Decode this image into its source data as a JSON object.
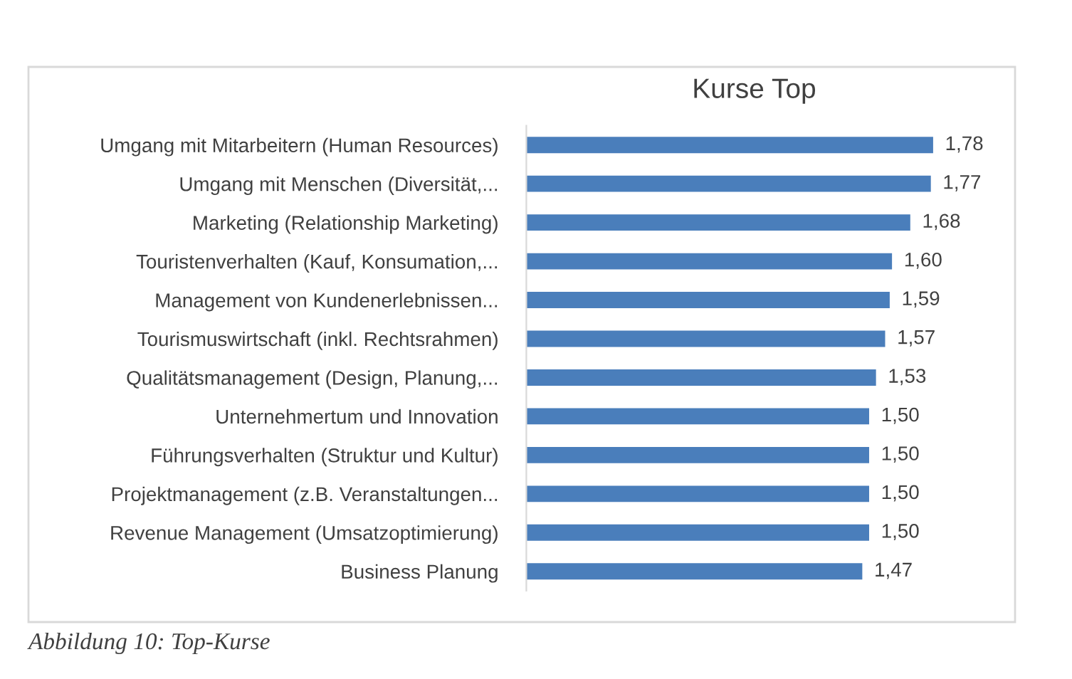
{
  "chart_data": {
    "type": "bar",
    "orientation": "horizontal",
    "title": "Kurse Top",
    "categories": [
      "Umgang mit Mitarbeitern (Human Resources)",
      "Umgang mit Menschen (Diversität,...",
      "Marketing (Relationship Marketing)",
      "Touristenverhalten (Kauf, Konsumation,...",
      "Management von Kundenerlebnissen...",
      "Tourismuswirtschaft (inkl. Rechtsrahmen)",
      "Qualitätsmanagement (Design, Planung,...",
      "Unternehmertum und Innovation",
      "Führungsverhalten (Struktur und Kultur)",
      "Projektmanagement (z.B. Veranstaltungen...",
      "Revenue Management (Umsatzoptimierung)",
      "Business Planung"
    ],
    "values": [
      1.78,
      1.77,
      1.68,
      1.6,
      1.59,
      1.57,
      1.53,
      1.5,
      1.5,
      1.5,
      1.5,
      1.47
    ],
    "value_labels": [
      "1,78",
      "1,77",
      "1,68",
      "1,60",
      "1,59",
      "1,57",
      "1,53",
      "1,50",
      "1,50",
      "1,50",
      "1,50",
      "1,47"
    ],
    "color": "#4a7ebb",
    "tick_labels": "y",
    "grid": false,
    "legend": false,
    "annotations": [
      "Abbildung 10: Top-Kurse"
    ]
  }
}
